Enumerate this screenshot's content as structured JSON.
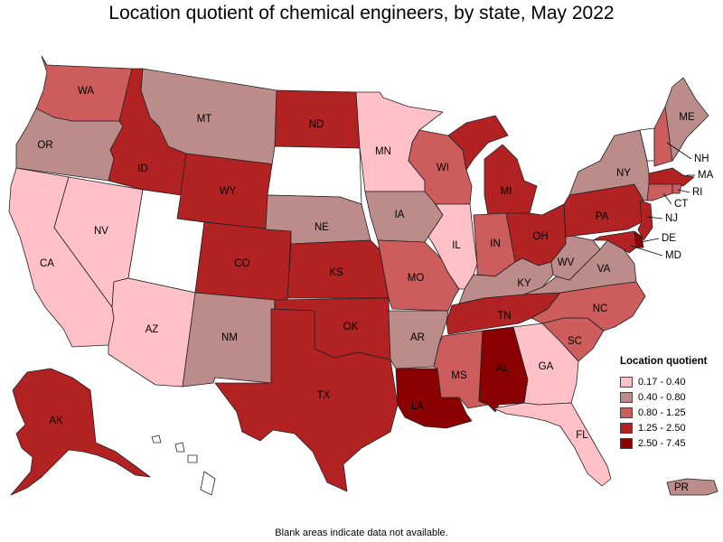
{
  "title": "Location quotient of chemical engineers, by state, May 2022",
  "footnote": "Blank areas indicate data not available.",
  "legend": {
    "title": "Location quotient",
    "items": [
      {
        "label": "0.17 - 0.40",
        "color": "#ffc0c8"
      },
      {
        "label": "0.40 - 0.80",
        "color": "#bc8c8a"
      },
      {
        "label": "0.80 - 1.25",
        "color": "#cd5c5c"
      },
      {
        "label": "1.25 - 2.50",
        "color": "#b22222"
      },
      {
        "label": "2.50 - 7.45",
        "color": "#8b0000"
      }
    ]
  },
  "no_data_color": "#ffffff",
  "states": [
    {
      "code": "WA",
      "class": 2
    },
    {
      "code": "OR",
      "class": 1
    },
    {
      "code": "CA",
      "class": 0
    },
    {
      "code": "NV",
      "class": 0
    },
    {
      "code": "ID",
      "class": 3
    },
    {
      "code": "MT",
      "class": 1
    },
    {
      "code": "WY",
      "class": 3
    },
    {
      "code": "UT",
      "class": null
    },
    {
      "code": "AZ",
      "class": 0
    },
    {
      "code": "CO",
      "class": 3
    },
    {
      "code": "NM",
      "class": 1
    },
    {
      "code": "ND",
      "class": 3
    },
    {
      "code": "SD",
      "class": null
    },
    {
      "code": "NE",
      "class": 1
    },
    {
      "code": "KS",
      "class": 3
    },
    {
      "code": "OK",
      "class": 3
    },
    {
      "code": "TX",
      "class": 3
    },
    {
      "code": "MN",
      "class": 0
    },
    {
      "code": "IA",
      "class": 1
    },
    {
      "code": "MO",
      "class": 2
    },
    {
      "code": "AR",
      "class": 1
    },
    {
      "code": "LA",
      "class": 4
    },
    {
      "code": "WI",
      "class": 2
    },
    {
      "code": "IL",
      "class": 0
    },
    {
      "code": "MI",
      "class": 3
    },
    {
      "code": "IN",
      "class": 2
    },
    {
      "code": "OH",
      "class": 3
    },
    {
      "code": "KY",
      "class": 1
    },
    {
      "code": "TN",
      "class": 3
    },
    {
      "code": "MS",
      "class": 2
    },
    {
      "code": "AL",
      "class": 4
    },
    {
      "code": "GA",
      "class": 0
    },
    {
      "code": "FL",
      "class": 0
    },
    {
      "code": "SC",
      "class": 2
    },
    {
      "code": "NC",
      "class": 2
    },
    {
      "code": "VA",
      "class": 1
    },
    {
      "code": "WV",
      "class": 1
    },
    {
      "code": "PA",
      "class": 3
    },
    {
      "code": "NY",
      "class": 1
    },
    {
      "code": "VT",
      "class": null
    },
    {
      "code": "NH",
      "class": 2
    },
    {
      "code": "ME",
      "class": 1
    },
    {
      "code": "MA",
      "class": 3
    },
    {
      "code": "RI",
      "class": 2
    },
    {
      "code": "CT",
      "class": 2
    },
    {
      "code": "NJ",
      "class": 3
    },
    {
      "code": "DE",
      "class": 4
    },
    {
      "code": "MD",
      "class": 3
    },
    {
      "code": "AK",
      "class": 3
    },
    {
      "code": "HI",
      "class": null
    },
    {
      "code": "PR",
      "class": 1
    }
  ]
}
